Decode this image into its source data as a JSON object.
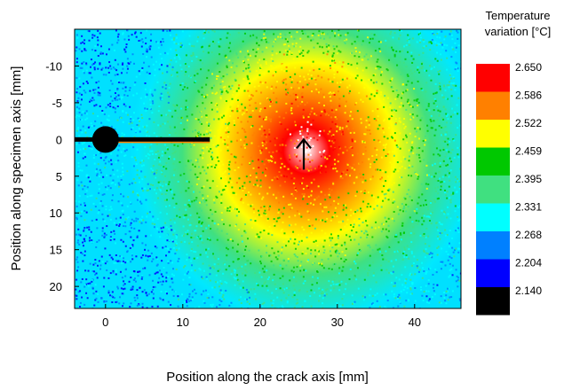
{
  "chart_data": {
    "type": "heatmap",
    "title": "",
    "xlabel": "Position along the crack axis [mm]",
    "ylabel": "Position along specimen axis [mm]",
    "xlim": [
      -4,
      46
    ],
    "ylim": [
      -15,
      23
    ],
    "y_inverted": true,
    "x_ticks": [
      0,
      10,
      20,
      30,
      40
    ],
    "y_ticks": [
      -10,
      -5,
      0,
      5,
      10,
      15,
      20
    ],
    "grid": false,
    "colorbar": {
      "title_lines": [
        "Temperature",
        "variation [°C]"
      ],
      "levels": [
        {
          "value": "2.650",
          "color": "#ff0000"
        },
        {
          "value": "2.586",
          "color": "#ff8000"
        },
        {
          "value": "2.522",
          "color": "#ffff00"
        },
        {
          "value": "2.459",
          "color": "#00c800"
        },
        {
          "value": "2.395",
          "color": "#40e080"
        },
        {
          "value": "2.331",
          "color": "#00ffff"
        },
        {
          "value": "2.268",
          "color": "#0080ff"
        },
        {
          "value": "2.204",
          "color": "#0000ff"
        },
        {
          "value": "2.140",
          "color": "#000000"
        }
      ]
    },
    "features": {
      "hole": {
        "x": 0,
        "y": 0,
        "radius_mm": 1.6
      },
      "crack": {
        "x_start": 0,
        "x_end": 13.5,
        "y": 0
      },
      "hot_spot": {
        "x": 26,
        "y": 0
      }
    }
  }
}
